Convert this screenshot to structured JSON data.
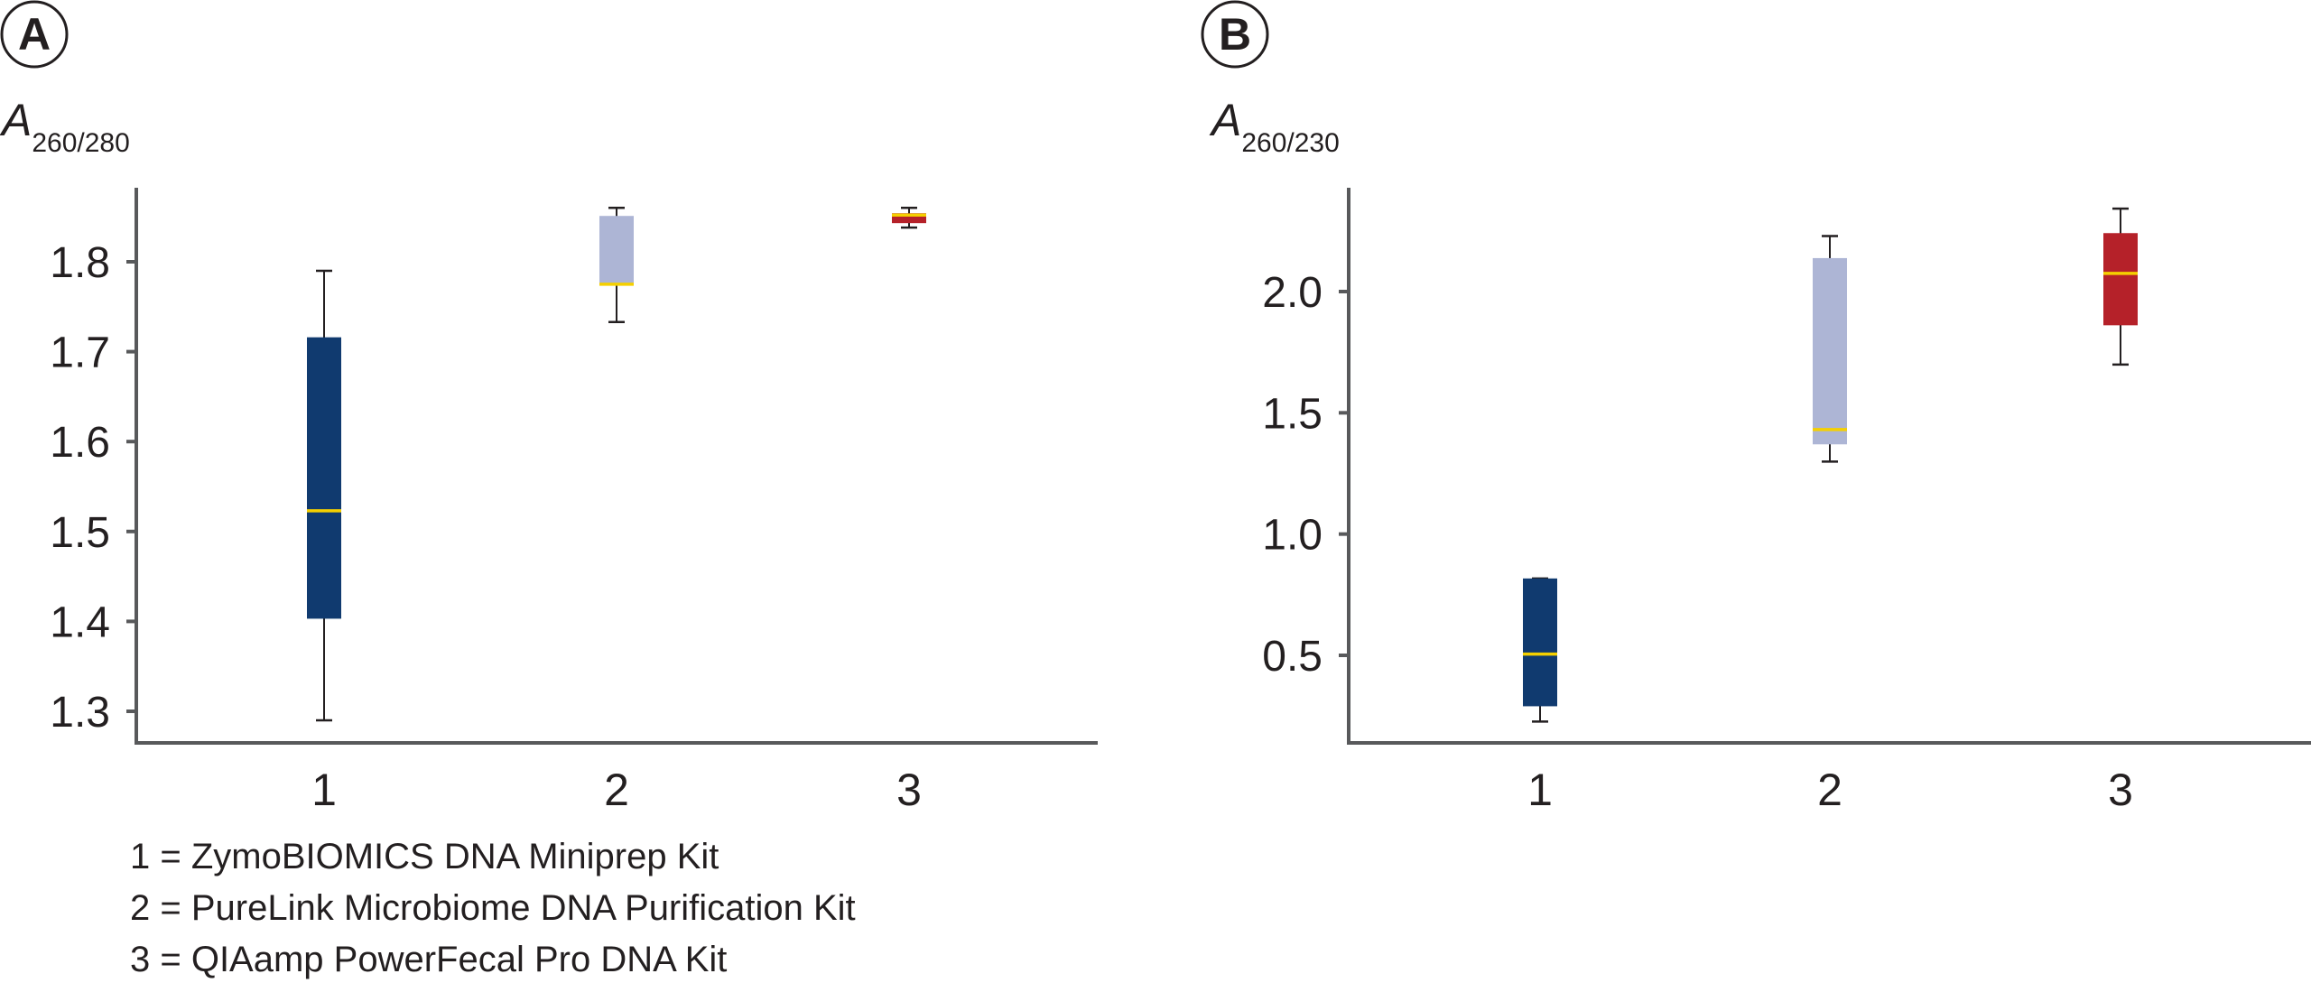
{
  "chart_data": [
    {
      "type": "box",
      "panel_label": "A",
      "ylabel_main": "A",
      "ylabel_sub": "260/280",
      "categories": [
        "1",
        "2",
        "3"
      ],
      "ylim": [
        1.26,
        1.89
      ],
      "yticks": [
        1.3,
        1.4,
        1.5,
        1.6,
        1.7,
        1.8
      ],
      "ytick_labels": [
        "1.3",
        "1.4",
        "1.5",
        "1.6",
        "1.7",
        "1.8"
      ],
      "grid": false,
      "boxes": [
        {
          "category": "1",
          "whisker_low": 1.29,
          "q1": 1.403,
          "median": 1.523,
          "q3": 1.716,
          "whisker_high": 1.79,
          "color": "#103a6f"
        },
        {
          "category": "2",
          "whisker_low": 1.733,
          "q1": 1.775,
          "median": 1.775,
          "q3": 1.851,
          "whisker_high": 1.86,
          "color": "#adb5d5"
        },
        {
          "category": "3",
          "whisker_low": 1.838,
          "q1": 1.843,
          "median": 1.852,
          "q3": 1.854,
          "whisker_high": 1.86,
          "color": "#b52129"
        }
      ],
      "median_color": "#f5d000"
    },
    {
      "type": "box",
      "panel_label": "B",
      "ylabel_main": "A",
      "ylabel_sub": "260/230",
      "categories": [
        "1",
        "2",
        "3"
      ],
      "ylim": [
        0.13,
        2.43
      ],
      "yticks": [
        0.5,
        1.0,
        1.5,
        2.0
      ],
      "ytick_labels": [
        "0.5",
        "1.0",
        "1.5",
        "2.0"
      ],
      "grid": false,
      "boxes": [
        {
          "category": "1",
          "whisker_low": 0.227,
          "q1": 0.29,
          "median": 0.505,
          "q3": 0.817,
          "whisker_high": 0.817,
          "color": "#103a6f"
        },
        {
          "category": "2",
          "whisker_low": 1.299,
          "q1": 1.37,
          "median": 1.431,
          "q3": 2.138,
          "whisker_high": 2.229,
          "color": "#adb5d5"
        },
        {
          "category": "3",
          "whisker_low": 1.699,
          "q1": 1.861,
          "median": 2.075,
          "q3": 2.241,
          "whisker_high": 2.342,
          "color": "#b52129"
        }
      ],
      "median_color": "#f5d000"
    }
  ],
  "legend": [
    "1 = ZymoBIOMICS DNA Miniprep Kit",
    "2 = PureLink Microbiome DNA Purification Kit",
    "3 = QIAamp PowerFecal Pro DNA Kit"
  ]
}
